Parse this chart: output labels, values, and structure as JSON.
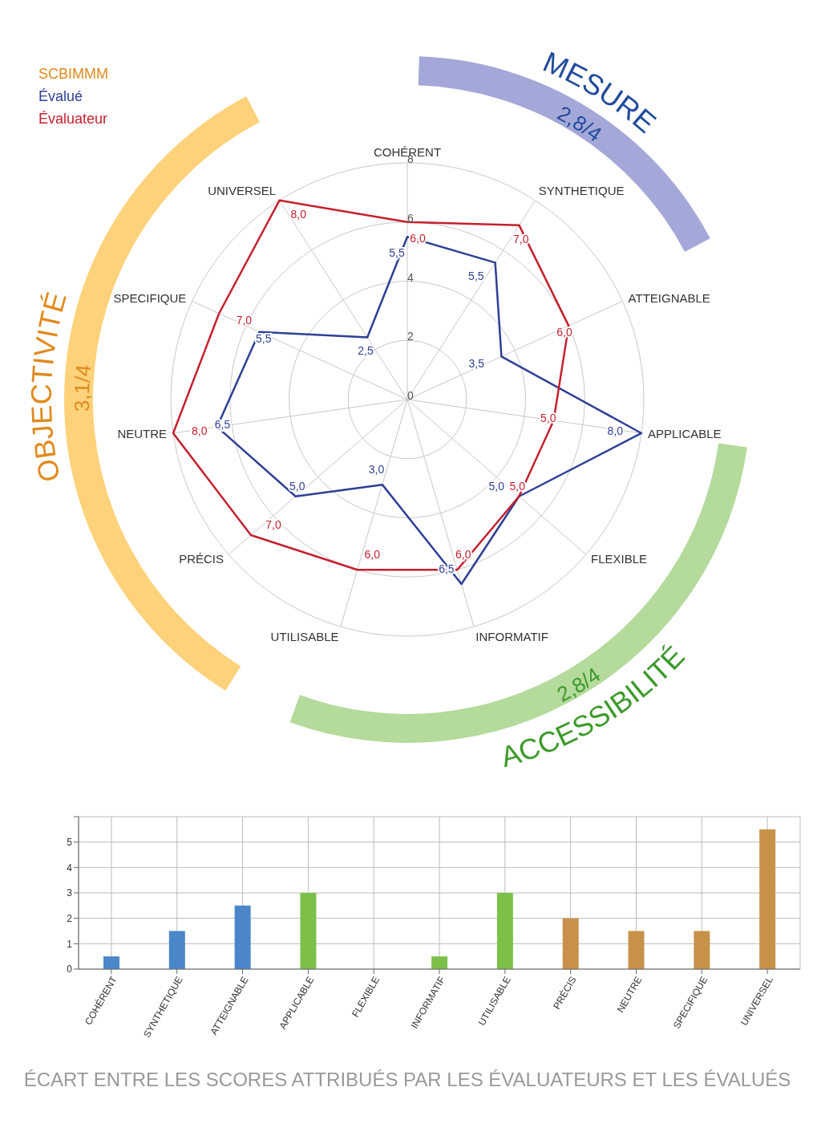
{
  "chart_data": [
    {
      "type": "radar",
      "legend_title": "SCBIMMM",
      "legend": "top left",
      "categories": [
        "COHÉRENT",
        "SYNTHETIQUE",
        "ATTEIGNABLE",
        "APPLICABLE",
        "FLEXIBLE",
        "INFORMATIF",
        "UTILISABLE",
        "PRÉCIS",
        "NEUTRE",
        "SPECIFIQUE",
        "UNIVERSEL"
      ],
      "series": [
        {
          "name": "Évalué",
          "color": "#2e3f95",
          "values": [
            5.5,
            5.5,
            3.5,
            8.0,
            5.0,
            6.5,
            3.0,
            5.0,
            6.5,
            5.5,
            2.5
          ],
          "value_labels": [
            "5,5",
            "5,5",
            "3,5",
            "8,0",
            "5,0",
            "6,5",
            "3,0",
            "5,0",
            "6,5",
            "5,5",
            "2,5"
          ]
        },
        {
          "name": "Évaluateur",
          "color": "#c4202e",
          "values": [
            6.0,
            7.0,
            6.0,
            5.0,
            5.0,
            6.0,
            6.0,
            7.0,
            8.0,
            7.0,
            8.0
          ],
          "value_labels": [
            "6,0",
            "7,0",
            "6,0",
            "5,0",
            "5,0",
            "6,0",
            "6,0",
            "7,0",
            "8,0",
            "7,0",
            "8,0"
          ]
        }
      ],
      "ylim": [
        0,
        8
      ],
      "yticks": [
        0,
        2,
        4,
        6,
        8
      ],
      "grid": true,
      "annotations": [
        "MESURE",
        "2,8/4",
        "ACCESSIBILITÉ",
        "2,8/4",
        "OBJECTIVITÉ",
        "3,1/4"
      ]
    },
    {
      "type": "bar",
      "title": "ÉCART ENTRE LES SCORES ATTRIBUÉS PAR LES ÉVALUATEURS ET LES ÉVALUÉS",
      "categories": [
        "COHÉRENT",
        "SYNTHETIQUE",
        "ATTEIGNABLE",
        "APPLICABLE",
        "FLEXIBLE",
        "INFORMATIF",
        "UTILISABLE",
        "PRÉCIS",
        "NEUTRE",
        "SPECIFIQUE",
        "UNIVERSEL"
      ],
      "values": [
        0.5,
        1.5,
        2.5,
        3,
        0,
        0.5,
        3,
        2,
        1.5,
        1.5,
        5.5
      ],
      "colors": [
        "#4a86c8",
        "#4a86c8",
        "#4a86c8",
        "#7cc04a",
        "#7cc04a",
        "#7cc04a",
        "#7cc04a",
        "#c8914a",
        "#c8914a",
        "#c8914a",
        "#c8914a"
      ],
      "ylim": [
        0,
        6
      ],
      "yticks": [
        0,
        1,
        2,
        3,
        4,
        5,
        {
          "value": 6,
          "label": null
        }
      ],
      "grid": true
    }
  ]
}
